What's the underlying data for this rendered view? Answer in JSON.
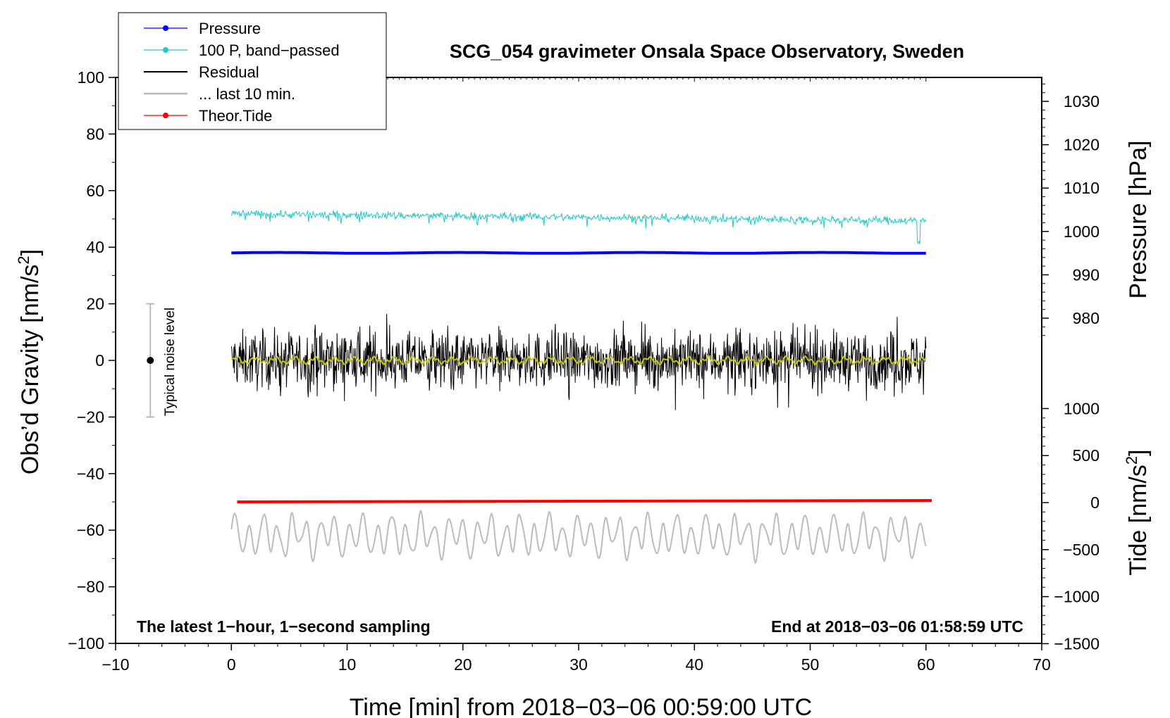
{
  "chart_data": {
    "type": "line",
    "title": "SCG_054 gravimeter Onsala Space Observatory, Sweden",
    "xlabel": "Time [min] from 2018−03−06 00:59:00 UTC",
    "ylabel_left": "Obs’d Gravity [nm/s",
    "ylabel_left_sup": "2",
    "ylabel_left_end": "]",
    "ylabel_right_top": "Pressure [hPa]",
    "ylabel_right_bottom": "Tide [nm/s",
    "ylabel_right_bottom_sup": "2",
    "ylabel_right_bottom_end": "]",
    "xlim": [
      -10,
      70
    ],
    "ylim": [
      -100,
      100
    ],
    "x_ticks": [
      "−10",
      "0",
      "10",
      "20",
      "30",
      "40",
      "50",
      "60",
      "70"
    ],
    "y_ticks": [
      "100",
      "80",
      "60",
      "40",
      "20",
      "0",
      "−20",
      "−40",
      "−60",
      "−80",
      "−100"
    ],
    "pressure_ticks": [
      "1030",
      "1020",
      "1010",
      "1000",
      "990",
      "980"
    ],
    "tide_ticks": [
      "1000",
      "500",
      "0",
      "−500",
      "−1000",
      "−1500"
    ],
    "noise_label": "Typical noise level",
    "noise_bar": {
      "x": -7,
      "center": 0,
      "low": -20,
      "high": 20
    },
    "note_left": "The latest 1−hour, 1−second sampling",
    "note_right": "End at 2018−03−06 01:58:59 UTC",
    "legend": [
      {
        "label": "Pressure",
        "color": "#0000ff"
      },
      {
        "label": "100 P, band−passed",
        "color": "#20c8c8"
      },
      {
        "label": "Residual",
        "color": "#000000"
      },
      {
        "label": "... last 10 min.",
        "color": "#bbbbbb"
      },
      {
        "label": "Theor.Tide",
        "color": "#ff0000"
      }
    ],
    "series": [
      {
        "name": "Pressure",
        "color": "#0000ff",
        "x_range": [
          0,
          60
        ],
        "approx_level_gravity_units": 38,
        "approx_pressure_hPa": 995
      },
      {
        "name": "100 P, band-passed",
        "color": "#20c8c8",
        "x_range": [
          0,
          60
        ],
        "approx_level_gravity_units": 50,
        "noise_amplitude": 2
      },
      {
        "name": "Residual",
        "color": "#000000",
        "x_range": [
          0,
          60
        ],
        "approx_level_gravity_units": 0,
        "noise_amplitude": 9
      },
      {
        "name": "Residual smoothed",
        "color": "#c8c800",
        "x_range": [
          0,
          60
        ],
        "approx_level_gravity_units": 0
      },
      {
        "name": "... last 10 min.",
        "color": "#bbbbbb",
        "x_range": [
          0,
          60
        ],
        "approx_level_gravity_units": -62,
        "noise_amplitude": 9
      },
      {
        "name": "Theor.Tide",
        "color": "#ff0000",
        "x_range": [
          0.5,
          60.5
        ],
        "y_gravity_units": [
          -50,
          -49.5
        ]
      }
    ]
  }
}
